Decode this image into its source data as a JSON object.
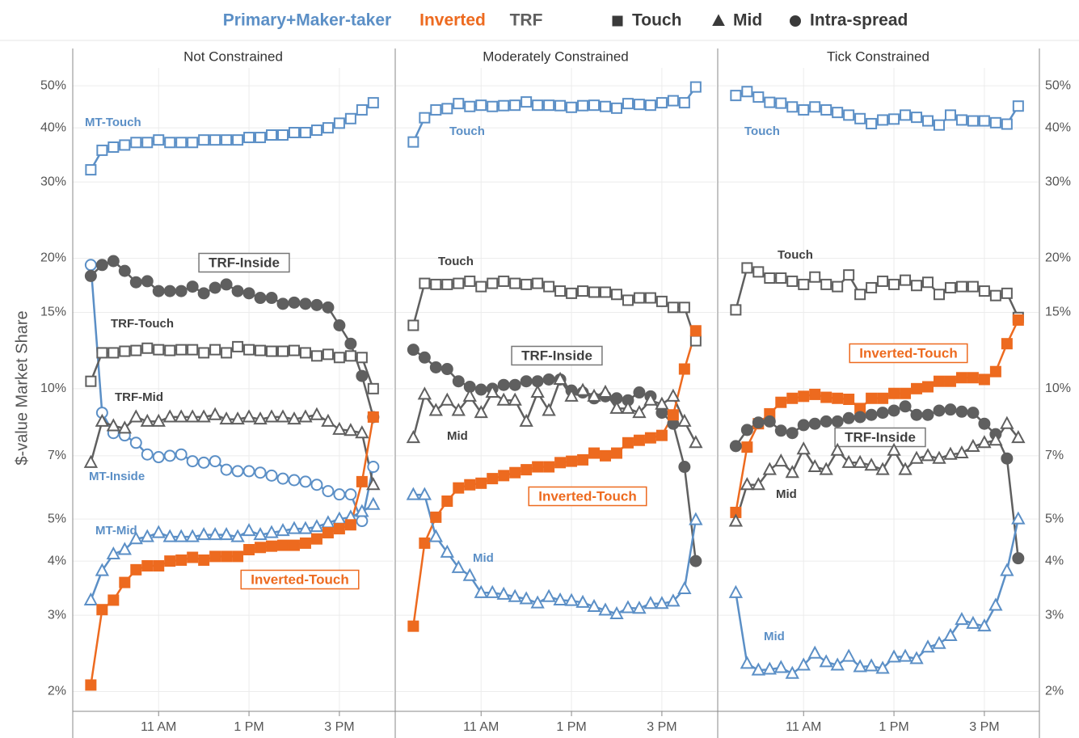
{
  "legend": {
    "venues": [
      {
        "name": "Primary+Maker-taker",
        "color": "#5b8fc6"
      },
      {
        "name": "Inverted",
        "color": "#ed6a1f"
      },
      {
        "name": "TRF",
        "color": "#5f5f5f"
      }
    ],
    "markers": [
      {
        "name": "Touch",
        "marker": "square"
      },
      {
        "name": "Mid",
        "marker": "triangle"
      },
      {
        "name": "Intra-spread",
        "marker": "circle"
      }
    ]
  },
  "chart_data": [
    {
      "type": "line",
      "title": "Not Constrained",
      "ylabel": "$-value Market Share",
      "yscale": "log",
      "grid": true,
      "x": [
        9.5,
        9.75,
        10,
        10.25,
        10.5,
        10.75,
        11,
        11.25,
        11.5,
        11.75,
        12,
        12.25,
        12.5,
        12.75,
        13,
        13.25,
        13.5,
        13.75,
        14,
        14.25,
        14.5,
        14.75,
        15,
        15.25,
        15.5,
        15.75
      ],
      "xlim": [
        9.1,
        16.2
      ],
      "xticks": [
        {
          "value": 11,
          "label": "11 AM"
        },
        {
          "value": 13,
          "label": "1 PM"
        },
        {
          "value": 15,
          "label": "3 PM"
        }
      ],
      "ylim": [
        1.8,
        55
      ],
      "yticks": [
        {
          "value": 2,
          "label": "2%"
        },
        {
          "value": 3,
          "label": "3%"
        },
        {
          "value": 4,
          "label": "4%"
        },
        {
          "value": 5,
          "label": "5%"
        },
        {
          "value": 7,
          "label": "7%"
        },
        {
          "value": 10,
          "label": "10%"
        },
        {
          "value": 15,
          "label": "15%"
        },
        {
          "value": 20,
          "label": "20%"
        },
        {
          "value": 30,
          "label": "30%"
        },
        {
          "value": 40,
          "label": "40%"
        },
        {
          "value": 50,
          "label": "50%"
        }
      ],
      "series": [
        {
          "name": "MT-Touch",
          "color": "#5b8fc6",
          "marker": "square",
          "filled": false,
          "boxed": false,
          "values": [
            32,
            35.5,
            36.1,
            36.5,
            37,
            37,
            37.5,
            37,
            37,
            37,
            37.5,
            37.5,
            37.5,
            37.5,
            38,
            38,
            38.5,
            38.5,
            39,
            39,
            39.5,
            40,
            41,
            42,
            44,
            45.7
          ]
        },
        {
          "name": "MT-Inside",
          "color": "#5b8fc6",
          "marker": "circle",
          "filled": false,
          "boxed": false,
          "values": [
            19.3,
            8.8,
            7.9,
            7.8,
            7.5,
            7.05,
            6.95,
            7.0,
            7.05,
            6.8,
            6.75,
            6.8,
            6.5,
            6.45,
            6.45,
            6.4,
            6.3,
            6.2,
            6.15,
            6.1,
            6.0,
            5.8,
            5.7,
            5.7,
            4.95,
            6.6
          ]
        },
        {
          "name": "MT-Mid",
          "color": "#5b8fc6",
          "marker": "triangle",
          "filled": false,
          "boxed": false,
          "values": [
            3.25,
            3.8,
            4.15,
            4.25,
            4.5,
            4.55,
            4.65,
            4.55,
            4.55,
            4.55,
            4.6,
            4.6,
            4.6,
            4.55,
            4.7,
            4.6,
            4.65,
            4.7,
            4.75,
            4.75,
            4.8,
            4.9,
            5.0,
            5.05,
            5.2,
            5.4
          ]
        },
        {
          "name": "TRF-Touch",
          "color": "#5f5f5f",
          "marker": "square",
          "filled": false,
          "boxed": false,
          "values": [
            10.4,
            12.1,
            12.1,
            12.2,
            12.25,
            12.4,
            12.3,
            12.25,
            12.3,
            12.3,
            12.1,
            12.3,
            12.1,
            12.5,
            12.3,
            12.25,
            12.2,
            12.2,
            12.25,
            12.1,
            11.9,
            12.0,
            11.8,
            11.9,
            11.8,
            10.0
          ]
        },
        {
          "name": "TRF-Mid",
          "color": "#5f5f5f",
          "marker": "triangle",
          "filled": false,
          "boxed": false,
          "values": [
            6.75,
            8.4,
            8.2,
            8.1,
            8.6,
            8.4,
            8.4,
            8.6,
            8.6,
            8.6,
            8.6,
            8.7,
            8.5,
            8.5,
            8.6,
            8.5,
            8.6,
            8.6,
            8.5,
            8.6,
            8.7,
            8.4,
            8.05,
            8.0,
            7.9,
            6.0
          ]
        },
        {
          "name": "TRF-Inside",
          "color": "#5f5f5f",
          "marker": "circle",
          "filled": true,
          "boxed": true,
          "values": [
            18.2,
            19.3,
            19.7,
            18.7,
            17.6,
            17.7,
            16.8,
            16.8,
            16.8,
            17.2,
            16.6,
            17.1,
            17.4,
            16.8,
            16.6,
            16.2,
            16.2,
            15.7,
            15.8,
            15.7,
            15.6,
            15.4,
            14.0,
            12.7,
            10.7,
            8.6
          ]
        },
        {
          "name": "Inverted-Touch",
          "color": "#ed6a1f",
          "marker": "square",
          "filled": true,
          "boxed": true,
          "values": [
            2.07,
            3.09,
            3.25,
            3.57,
            3.82,
            3.9,
            3.9,
            4.0,
            4.02,
            4.08,
            4.02,
            4.1,
            4.1,
            4.1,
            4.25,
            4.3,
            4.33,
            4.35,
            4.35,
            4.4,
            4.5,
            4.65,
            4.75,
            4.85,
            6.1,
            8.6
          ]
        }
      ]
    },
    {
      "type": "line",
      "title": "Moderately Constrained",
      "yscale": "log",
      "grid": true,
      "x": [
        9.5,
        9.75,
        10,
        10.25,
        10.5,
        10.75,
        11,
        11.25,
        11.5,
        11.75,
        12,
        12.25,
        12.5,
        12.75,
        13,
        13.25,
        13.5,
        13.75,
        14,
        14.25,
        14.5,
        14.75,
        15,
        15.25,
        15.5,
        15.75
      ],
      "xlim": [
        9.1,
        16.2
      ],
      "xticks": [
        {
          "value": 11,
          "label": "11 AM"
        },
        {
          "value": 13,
          "label": "1 PM"
        },
        {
          "value": 15,
          "label": "3 PM"
        }
      ],
      "ylim": [
        1.8,
        55
      ],
      "yticks": [
        {
          "value": 2,
          "label": "2%"
        },
        {
          "value": 3,
          "label": "3%"
        },
        {
          "value": 4,
          "label": "4%"
        },
        {
          "value": 5,
          "label": "5%"
        },
        {
          "value": 7,
          "label": "7%"
        },
        {
          "value": 10,
          "label": "10%"
        },
        {
          "value": 15,
          "label": "15%"
        },
        {
          "value": 20,
          "label": "20%"
        },
        {
          "value": 30,
          "label": "30%"
        },
        {
          "value": 40,
          "label": "40%"
        },
        {
          "value": 50,
          "label": "50%"
        }
      ],
      "series": [
        {
          "name": "Touch",
          "color": "#5b8fc6",
          "marker": "square",
          "filled": false,
          "boxed": false,
          "values": [
            37.1,
            42.2,
            44,
            44.3,
            45.5,
            44.8,
            45.1,
            44.8,
            45.0,
            45.1,
            45.9,
            45.1,
            45.1,
            45.0,
            44.6,
            45.0,
            45.1,
            44.8,
            44.4,
            45.5,
            45.3,
            45.1,
            45.7,
            46.2,
            45.7,
            49.7
          ]
        },
        {
          "name": "Touch",
          "color": "#5f5f5f",
          "marker": "square",
          "filled": false,
          "boxed": false,
          "values": [
            14.0,
            17.5,
            17.4,
            17.4,
            17.5,
            17.7,
            17.2,
            17.5,
            17.7,
            17.5,
            17.4,
            17.5,
            17.2,
            16.8,
            16.6,
            16.8,
            16.7,
            16.7,
            16.5,
            16.0,
            16.2,
            16.2,
            15.9,
            15.4,
            15.4,
            12.9
          ]
        },
        {
          "name": "TRF-Inside",
          "color": "#5f5f5f",
          "marker": "circle",
          "filled": true,
          "boxed": true,
          "values": [
            12.3,
            11.8,
            11.2,
            11.1,
            10.4,
            10.1,
            9.95,
            10.0,
            10.2,
            10.2,
            10.4,
            10.4,
            10.5,
            10.5,
            9.9,
            9.8,
            9.5,
            9.6,
            9.5,
            9.4,
            9.8,
            9.6,
            8.8,
            8.3,
            6.6,
            4.0
          ]
        },
        {
          "name": "Mid",
          "color": "#5f5f5f",
          "marker": "triangle",
          "filled": false,
          "boxed": false,
          "values": [
            7.7,
            9.7,
            8.9,
            9.4,
            8.9,
            9.6,
            8.8,
            9.8,
            9.4,
            9.4,
            8.4,
            9.8,
            8.9,
            10.5,
            9.6,
            9.9,
            9.6,
            9.8,
            9.0,
            9.0,
            8.8,
            9.4,
            9.2,
            9.6,
            8.4,
            7.5
          ]
        },
        {
          "name": "Inverted-Touch",
          "color": "#ed6a1f",
          "marker": "square",
          "filled": true,
          "boxed": true,
          "values": [
            2.83,
            4.4,
            5.05,
            5.5,
            5.9,
            6.0,
            6.05,
            6.2,
            6.3,
            6.4,
            6.5,
            6.6,
            6.6,
            6.75,
            6.8,
            6.85,
            7.1,
            7.0,
            7.1,
            7.5,
            7.6,
            7.7,
            7.8,
            8.7,
            11.1,
            13.6
          ]
        },
        {
          "name": "Mid",
          "color": "#5b8fc6",
          "marker": "triangle",
          "filled": false,
          "boxed": false,
          "values": [
            5.69,
            5.69,
            4.55,
            4.19,
            3.86,
            3.7,
            3.38,
            3.38,
            3.35,
            3.31,
            3.27,
            3.2,
            3.31,
            3.25,
            3.24,
            3.21,
            3.14,
            3.08,
            3.02,
            3.12,
            3.11,
            3.19,
            3.19,
            3.23,
            3.45,
            4.98
          ]
        }
      ]
    },
    {
      "type": "line",
      "title": "Tick Constrained",
      "yscale": "log",
      "grid": true,
      "x": [
        9.5,
        9.75,
        10,
        10.25,
        10.5,
        10.75,
        11,
        11.25,
        11.5,
        11.75,
        12,
        12.25,
        12.5,
        12.75,
        13,
        13.25,
        13.5,
        13.75,
        14,
        14.25,
        14.5,
        14.75,
        15,
        15.25,
        15.5,
        15.75
      ],
      "xlim": [
        9.1,
        16.2
      ],
      "xticks": [
        {
          "value": 11,
          "label": "11 AM"
        },
        {
          "value": 13,
          "label": "1 PM"
        },
        {
          "value": 15,
          "label": "3 PM"
        }
      ],
      "ylim": [
        1.8,
        55
      ],
      "yticks": [
        {
          "value": 2,
          "label": "2%"
        },
        {
          "value": 3,
          "label": "3%"
        },
        {
          "value": 4,
          "label": "4%"
        },
        {
          "value": 5,
          "label": "5%"
        },
        {
          "value": 7,
          "label": "7%"
        },
        {
          "value": 10,
          "label": "10%"
        },
        {
          "value": 15,
          "label": "15%"
        },
        {
          "value": 20,
          "label": "20%"
        },
        {
          "value": 30,
          "label": "30%"
        },
        {
          "value": 40,
          "label": "40%"
        },
        {
          "value": 50,
          "label": "50%"
        }
      ],
      "series": [
        {
          "name": "Touch",
          "color": "#5b8fc6",
          "marker": "square",
          "filled": false,
          "boxed": false,
          "values": [
            47.5,
            48.5,
            47.1,
            45.8,
            45.6,
            44.7,
            44.0,
            44.7,
            44.0,
            43.4,
            42.8,
            42.0,
            40.9,
            41.7,
            41.9,
            42.8,
            42.3,
            41.5,
            40.6,
            42.8,
            41.7,
            41.5,
            41.5,
            41.1,
            40.8,
            44.9
          ]
        },
        {
          "name": "Touch",
          "color": "#5f5f5f",
          "marker": "square",
          "filled": false,
          "boxed": false,
          "values": [
            15.2,
            19.0,
            18.6,
            18.0,
            18.0,
            17.7,
            17.4,
            18.1,
            17.4,
            17.2,
            18.3,
            16.5,
            17.1,
            17.7,
            17.4,
            17.8,
            17.3,
            17.6,
            16.5,
            17.1,
            17.2,
            17.2,
            16.8,
            16.4,
            16.6,
            14.6
          ]
        },
        {
          "name": "Inverted-Touch",
          "color": "#ed6a1f",
          "marker": "square",
          "filled": true,
          "boxed": true,
          "values": [
            5.18,
            7.33,
            8.3,
            8.75,
            9.3,
            9.5,
            9.6,
            9.7,
            9.55,
            9.5,
            9.45,
            9.0,
            9.5,
            9.5,
            9.75,
            9.75,
            10.0,
            10.1,
            10.4,
            10.4,
            10.6,
            10.6,
            10.5,
            10.95,
            12.7,
            14.4
          ]
        },
        {
          "name": "TRF-Inside",
          "color": "#5f5f5f",
          "marker": "circle",
          "filled": true,
          "boxed": true,
          "values": [
            7.37,
            8.03,
            8.35,
            8.4,
            8.0,
            7.9,
            8.24,
            8.3,
            8.4,
            8.4,
            8.55,
            8.6,
            8.7,
            8.8,
            8.9,
            9.1,
            8.7,
            8.7,
            8.9,
            8.95,
            8.85,
            8.8,
            8.3,
            7.85,
            6.9,
            4.06
          ]
        },
        {
          "name": "Mid",
          "color": "#5f5f5f",
          "marker": "triangle",
          "filled": false,
          "boxed": false,
          "values": [
            4.94,
            6.0,
            6.0,
            6.5,
            6.8,
            6.4,
            7.25,
            6.6,
            6.5,
            7.2,
            6.75,
            6.75,
            6.65,
            6.5,
            7.2,
            6.5,
            6.9,
            7.0,
            6.9,
            7.05,
            7.1,
            7.35,
            7.5,
            7.6,
            8.3,
            7.7
          ]
        },
        {
          "name": "Mid",
          "color": "#5b8fc6",
          "marker": "triangle",
          "filled": false,
          "boxed": false,
          "values": [
            3.38,
            2.32,
            2.24,
            2.25,
            2.27,
            2.2,
            2.3,
            2.45,
            2.34,
            2.3,
            2.41,
            2.28,
            2.29,
            2.26,
            2.4,
            2.41,
            2.38,
            2.53,
            2.58,
            2.69,
            2.93,
            2.87,
            2.83,
            3.16,
            3.8,
            5.0
          ]
        }
      ]
    }
  ]
}
